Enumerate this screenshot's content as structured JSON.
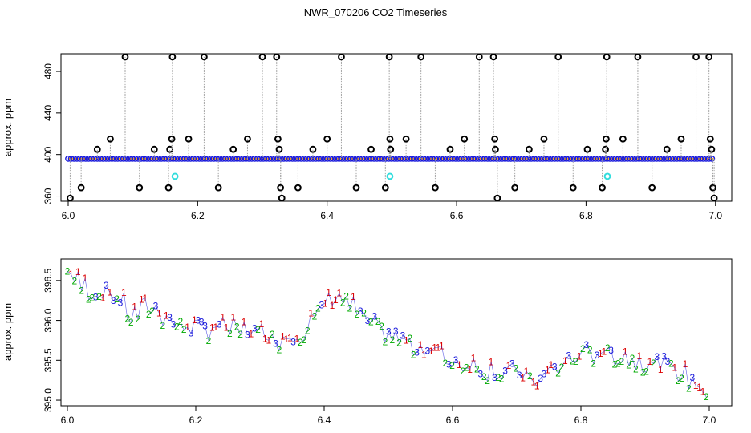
{
  "title": "NWR_070206  CO2 Timeseries",
  "chart_data": [
    {
      "type": "scatter",
      "ylabel": "approx. ppm",
      "xlim": [
        6.0,
        7.0
      ],
      "ylim": [
        355,
        497
      ],
      "xticks": [
        "6.0",
        "6.2",
        "6.4",
        "6.6",
        "6.8",
        "7.0"
      ],
      "yticks": [
        "360",
        "400",
        "440",
        "480"
      ],
      "baseline": 396,
      "baseline_color": "#1a1adb",
      "spike_color": "#000000",
      "cyan_color": "#33dddd",
      "spikes": [
        {
          "x": 6.003,
          "y": 358
        },
        {
          "x": 6.02,
          "y": 368
        },
        {
          "x": 6.045,
          "y": 405
        },
        {
          "x": 6.065,
          "y": 415
        },
        {
          "x": 6.088,
          "y": 494
        },
        {
          "x": 6.11,
          "y": 368
        },
        {
          "x": 6.133,
          "y": 405
        },
        {
          "x": 6.155,
          "y": 368
        },
        {
          "x": 6.157,
          "y": 405
        },
        {
          "x": 6.16,
          "y": 415
        },
        {
          "x": 6.161,
          "y": 494
        },
        {
          "x": 6.186,
          "y": 415
        },
        {
          "x": 6.21,
          "y": 494
        },
        {
          "x": 6.232,
          "y": 368
        },
        {
          "x": 6.255,
          "y": 405
        },
        {
          "x": 6.277,
          "y": 415
        },
        {
          "x": 6.3,
          "y": 494
        },
        {
          "x": 6.322,
          "y": 494
        },
        {
          "x": 6.324,
          "y": 415
        },
        {
          "x": 6.326,
          "y": 405
        },
        {
          "x": 6.328,
          "y": 368
        },
        {
          "x": 6.33,
          "y": 358
        },
        {
          "x": 6.355,
          "y": 368
        },
        {
          "x": 6.378,
          "y": 405
        },
        {
          "x": 6.4,
          "y": 415
        },
        {
          "x": 6.422,
          "y": 494
        },
        {
          "x": 6.445,
          "y": 368
        },
        {
          "x": 6.468,
          "y": 405
        },
        {
          "x": 6.49,
          "y": 368
        },
        {
          "x": 6.496,
          "y": 494
        },
        {
          "x": 6.497,
          "y": 415
        },
        {
          "x": 6.498,
          "y": 405
        },
        {
          "x": 6.522,
          "y": 415
        },
        {
          "x": 6.545,
          "y": 494
        },
        {
          "x": 6.567,
          "y": 368
        },
        {
          "x": 6.59,
          "y": 405
        },
        {
          "x": 6.612,
          "y": 415
        },
        {
          "x": 6.635,
          "y": 494
        },
        {
          "x": 6.657,
          "y": 494
        },
        {
          "x": 6.659,
          "y": 415
        },
        {
          "x": 6.66,
          "y": 405
        },
        {
          "x": 6.663,
          "y": 358
        },
        {
          "x": 6.69,
          "y": 368
        },
        {
          "x": 6.712,
          "y": 405
        },
        {
          "x": 6.735,
          "y": 415
        },
        {
          "x": 6.757,
          "y": 494
        },
        {
          "x": 6.78,
          "y": 368
        },
        {
          "x": 6.802,
          "y": 405
        },
        {
          "x": 6.825,
          "y": 368
        },
        {
          "x": 6.83,
          "y": 405
        },
        {
          "x": 6.831,
          "y": 415
        },
        {
          "x": 6.832,
          "y": 494
        },
        {
          "x": 6.857,
          "y": 415
        },
        {
          "x": 6.88,
          "y": 494
        },
        {
          "x": 6.902,
          "y": 368
        },
        {
          "x": 6.925,
          "y": 405
        },
        {
          "x": 6.947,
          "y": 415
        },
        {
          "x": 6.97,
          "y": 494
        },
        {
          "x": 6.99,
          "y": 494
        },
        {
          "x": 6.992,
          "y": 415
        },
        {
          "x": 6.994,
          "y": 405
        },
        {
          "x": 6.996,
          "y": 368
        },
        {
          "x": 6.998,
          "y": 358
        }
      ],
      "cyan_points": [
        {
          "x": 6.165,
          "y": 379
        },
        {
          "x": 6.497,
          "y": 379
        },
        {
          "x": 6.833,
          "y": 379
        }
      ]
    },
    {
      "type": "scatter",
      "ylabel": "approx. ppm",
      "xlim": [
        5.995,
        7.005
      ],
      "ylim": [
        394.93,
        396.77
      ],
      "xticks": [
        "6.0",
        "6.2",
        "6.4",
        "6.6",
        "6.8",
        "7.0"
      ],
      "yticks": [
        "395.0",
        "395.5",
        "396.0",
        "396.5"
      ],
      "series": [
        {
          "label": "1",
          "color": "#dd0000"
        },
        {
          "label": "2",
          "color": "#00aa00"
        },
        {
          "label": "3",
          "color": "#1a1adb"
        }
      ],
      "trend": [
        [
          6.0,
          396.65
        ],
        [
          6.02,
          396.45
        ],
        [
          6.05,
          396.35
        ],
        [
          6.08,
          396.3
        ],
        [
          6.1,
          396.05
        ],
        [
          6.13,
          396.2
        ],
        [
          6.16,
          396.0
        ],
        [
          6.2,
          395.9
        ],
        [
          6.25,
          395.9
        ],
        [
          6.3,
          395.85
        ],
        [
          6.34,
          395.75
        ],
        [
          6.37,
          395.9
        ],
        [
          6.4,
          396.2
        ],
        [
          6.43,
          396.3
        ],
        [
          6.46,
          396.05
        ],
        [
          6.5,
          395.85
        ],
        [
          6.55,
          395.65
        ],
        [
          6.6,
          395.5
        ],
        [
          6.65,
          395.4
        ],
        [
          6.7,
          395.35
        ],
        [
          6.73,
          395.2
        ],
        [
          6.76,
          395.4
        ],
        [
          6.8,
          395.6
        ],
        [
          6.85,
          395.6
        ],
        [
          6.9,
          395.5
        ],
        [
          6.95,
          395.4
        ],
        [
          7.0,
          395.05
        ]
      ]
    }
  ]
}
